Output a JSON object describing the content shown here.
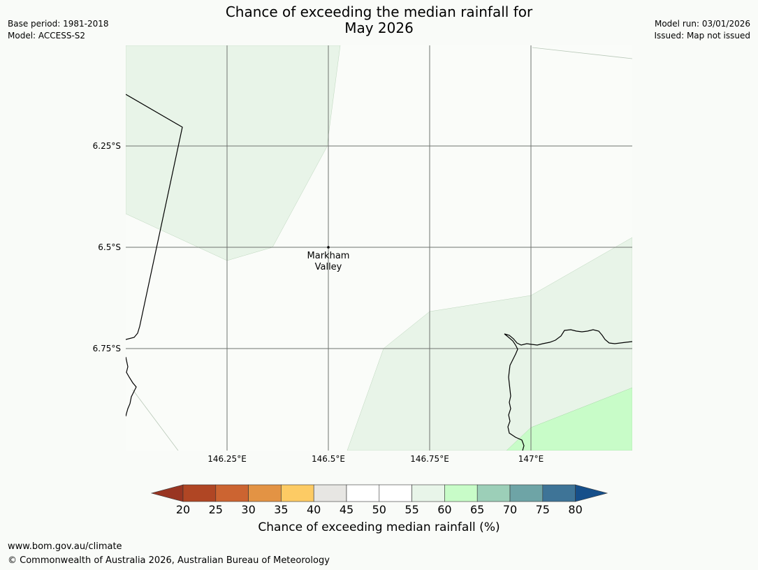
{
  "title": {
    "line1": "Chance of exceeding the median rainfall for",
    "line2": "May 2026"
  },
  "meta": {
    "base_period": "Base period: 1981-2018",
    "model": "Model: ACCESS-S2",
    "model_run": "Model run: 03/01/2026",
    "issued": "Issued: Map not issued"
  },
  "map": {
    "lat_labels": [
      "6.25°S",
      "6.5°S",
      "6.75°S"
    ],
    "lon_labels": [
      "146.25°E",
      "146.5°E",
      "146.75°E",
      "147°E"
    ],
    "place": {
      "name_line1": "Markham",
      "name_line2": "Valley"
    }
  },
  "colorbar": {
    "title": "Chance of exceeding median rainfall (%)",
    "ticks": [
      "20",
      "25",
      "30",
      "35",
      "40",
      "45",
      "50",
      "55",
      "60",
      "65",
      "70",
      "75",
      "80"
    ],
    "colors": [
      "#b04624",
      "#cc6431",
      "#e39344",
      "#fdcb64",
      "#e7e6e3",
      "#ffffff",
      "#ffffff",
      "#e8f5e9",
      "#c8fcc8",
      "#9ccfb8",
      "#6ea4a6",
      "#3e7497"
    ],
    "under_color": "#993522",
    "over_color": "#164f8a"
  },
  "footer": {
    "url": "www.bom.gov.au/climate",
    "copyright": "© Commonwealth of Australia 2026, Australian Bureau of Meteorology"
  }
}
